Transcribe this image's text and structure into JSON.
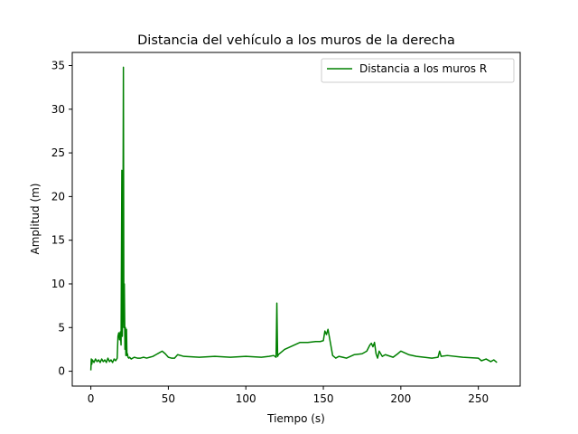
{
  "chart_data": {
    "type": "line",
    "title": "Distancia del vehículo a los muros de la derecha",
    "xlabel": "Tiempo (s)",
    "ylabel": "Amplitud (m)",
    "xlim": [
      -12,
      277
    ],
    "ylim": [
      -1.7,
      36.5
    ],
    "xticks": [
      0,
      50,
      100,
      150,
      200,
      250
    ],
    "yticks": [
      0,
      5,
      10,
      15,
      20,
      25,
      30,
      35
    ],
    "grid": false,
    "legend_position": "top-right",
    "series": [
      {
        "name": "Distancia a los muros R",
        "color": "#008000",
        "x": [
          0,
          0.3,
          0.6,
          1,
          2,
          3,
          4,
          5,
          6,
          7,
          8,
          9,
          10,
          11,
          12,
          13,
          14,
          15,
          16,
          17,
          17.5,
          18,
          18.5,
          19,
          19.5,
          20,
          20.3,
          20.6,
          21,
          21.3,
          21.6,
          22,
          22.3,
          22.6,
          23,
          23.3,
          23.6,
          24,
          24.5,
          25,
          26,
          28,
          30,
          32,
          34,
          36,
          38,
          40,
          42,
          44,
          46,
          48,
          50,
          52,
          54,
          56,
          60,
          70,
          80,
          90,
          100,
          110,
          115,
          118,
          119.5,
          120,
          120.5,
          121,
          125,
          130,
          135,
          140,
          145,
          148,
          150,
          151,
          152,
          153,
          154,
          155,
          156,
          158,
          160,
          165,
          170,
          175,
          178,
          180,
          181,
          182,
          183,
          184,
          185,
          186,
          188,
          190,
          195,
          198,
          200,
          205,
          210,
          215,
          220,
          224,
          225,
          226,
          230,
          240,
          250,
          252,
          255,
          258,
          260,
          262
        ],
        "y": [
          0.1,
          1.4,
          0.8,
          1.3,
          1.0,
          1.4,
          1.1,
          1.3,
          1.0,
          1.4,
          1.1,
          1.3,
          1.0,
          1.5,
          1.1,
          1.3,
          1.0,
          1.4,
          1.2,
          1.5,
          4.0,
          4.4,
          3.6,
          4.5,
          3.0,
          23.0,
          4.0,
          8.5,
          34.8,
          5.0,
          10.0,
          2.5,
          5.0,
          1.8,
          4.8,
          1.8,
          2.0,
          1.6,
          1.5,
          1.6,
          1.4,
          1.6,
          1.5,
          1.5,
          1.6,
          1.5,
          1.6,
          1.7,
          1.9,
          2.1,
          2.3,
          2.0,
          1.6,
          1.5,
          1.5,
          1.9,
          1.7,
          1.6,
          1.7,
          1.6,
          1.7,
          1.6,
          1.7,
          1.8,
          1.6,
          7.8,
          1.7,
          1.9,
          2.5,
          2.9,
          3.3,
          3.3,
          3.4,
          3.4,
          3.5,
          4.6,
          4.2,
          4.8,
          3.8,
          2.8,
          1.8,
          1.5,
          1.7,
          1.5,
          1.9,
          2.0,
          2.3,
          3.0,
          3.2,
          2.8,
          3.3,
          2.0,
          1.5,
          2.3,
          1.7,
          1.9,
          1.6,
          2.0,
          2.3,
          1.9,
          1.7,
          1.6,
          1.5,
          1.6,
          2.3,
          1.7,
          1.8,
          1.6,
          1.5,
          1.2,
          1.4,
          1.1,
          1.3,
          1.0
        ]
      }
    ]
  }
}
